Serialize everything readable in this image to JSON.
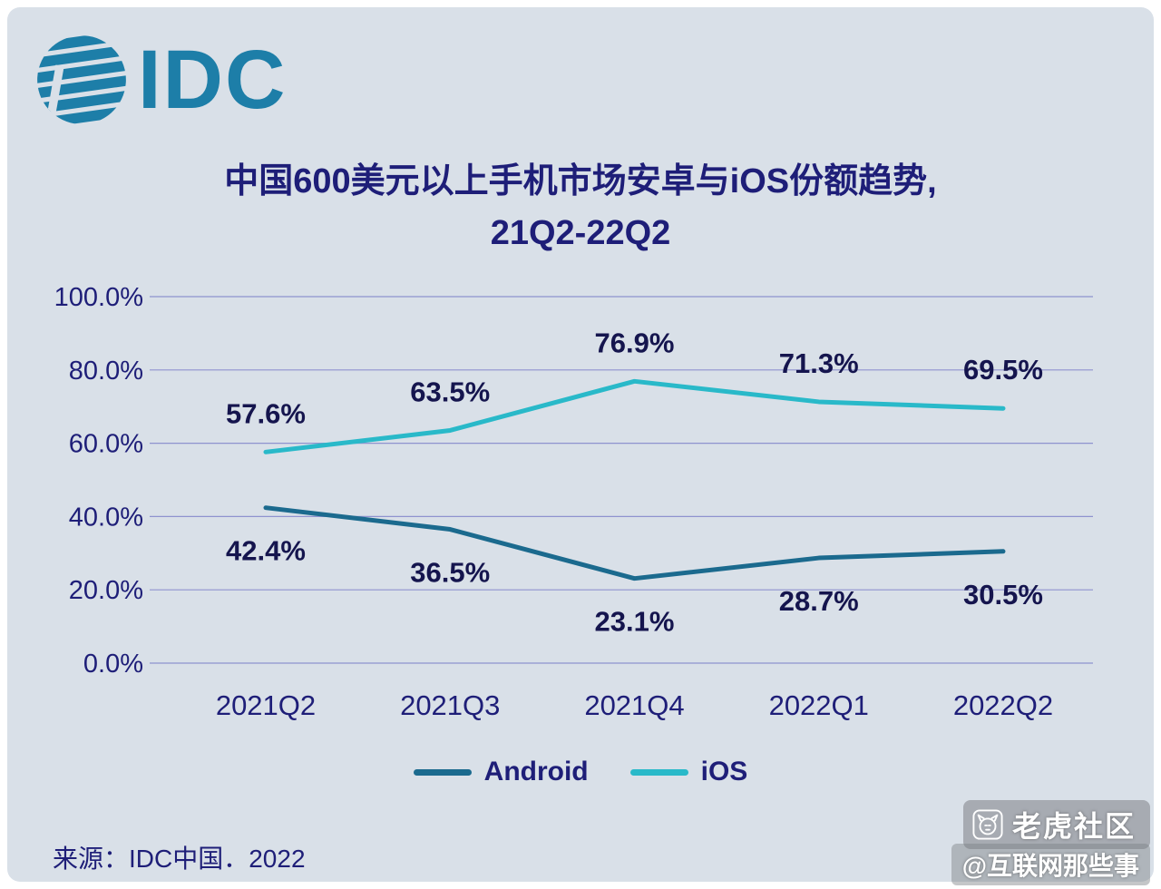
{
  "page": {
    "background": "#d9e0e8",
    "logo_text": "IDC",
    "title_line1": "中国600美元以上手机市场安卓与iOS份额趋势,",
    "title_line2": "21Q2-22Q2",
    "source": "来源：IDC中国．2022",
    "watermark_community": "老虎社区",
    "watermark_handle": "@互联网那些事"
  },
  "colors": {
    "title": "#1e1e78",
    "logo": "#1d7ea8",
    "android_line": "#1b6a8e",
    "ios_line": "#29b9c9",
    "grid": "#8f93cf",
    "value_label": "#15154e",
    "tick_label": "#1e1e78"
  },
  "chart_data": {
    "type": "line",
    "title": "中国600美元以上手机市场安卓与iOS份额趋势, 21Q2-22Q2",
    "categories": [
      "2021Q2",
      "2021Q3",
      "2021Q4",
      "2022Q1",
      "2022Q2"
    ],
    "series": [
      {
        "name": "Android",
        "color": "#1b6a8e",
        "values": [
          42.4,
          36.5,
          23.1,
          28.7,
          30.5
        ],
        "labels": [
          "42.4%",
          "36.5%",
          "23.1%",
          "28.7%",
          "30.5%"
        ],
        "label_position": "below"
      },
      {
        "name": "iOS",
        "color": "#29b9c9",
        "values": [
          57.6,
          63.5,
          76.9,
          71.3,
          69.5
        ],
        "labels": [
          "57.6%",
          "63.5%",
          "76.9%",
          "71.3%",
          "69.5%"
        ],
        "label_position": "above"
      }
    ],
    "ylim": [
      0,
      100
    ],
    "y_ticks": [
      0,
      20,
      40,
      60,
      80,
      100
    ],
    "y_tick_labels": [
      "0.0%",
      "20.0%",
      "40.0%",
      "60.0%",
      "80.0%",
      "100.0%"
    ],
    "grid": true,
    "legend_position": "bottom",
    "value_suffix": "%",
    "xlabel": "",
    "ylabel": ""
  }
}
